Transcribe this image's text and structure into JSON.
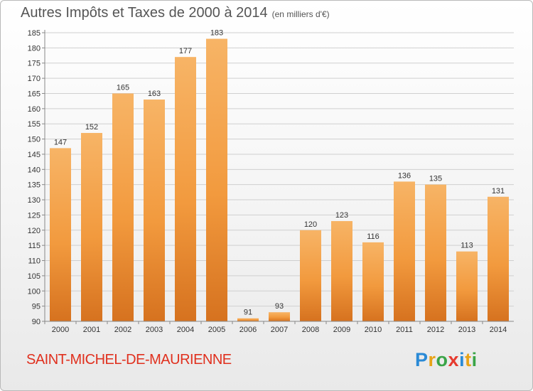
{
  "title": "Autres Impôts et Taxes de 2000 à 2014",
  "unit": "(en milliers d'€)",
  "town": "SAINT-MICHEL-DE-MAURIENNE",
  "logo": {
    "letters": [
      "P",
      "r",
      "o",
      "x",
      "i",
      "t",
      "i"
    ],
    "colors": [
      "#2a8ad6",
      "#e8a317",
      "#3aa447",
      "#e63a2e",
      "#2a8ad6",
      "#e8a317",
      "#3aa447"
    ]
  },
  "colors": {
    "bar": "#f29a3e",
    "bar_light": "#f7b466",
    "bar_dark": "#d6721f",
    "grid": "#cfcfcf"
  },
  "chart_data": {
    "type": "bar",
    "title": "Autres Impôts et Taxes de 2000 à 2014",
    "subtitle": "(en milliers d'€)",
    "categories": [
      "2000",
      "2001",
      "2002",
      "2003",
      "2004",
      "2005",
      "2006",
      "2007",
      "2008",
      "2009",
      "2010",
      "2011",
      "2012",
      "2013",
      "2014"
    ],
    "values": [
      147,
      152,
      165,
      163,
      177,
      183,
      91,
      93,
      120,
      123,
      116,
      136,
      135,
      113,
      131
    ],
    "ylim": [
      90,
      185
    ],
    "yticks": [
      90,
      95,
      100,
      105,
      110,
      115,
      120,
      125,
      130,
      135,
      140,
      145,
      150,
      155,
      160,
      165,
      170,
      175,
      180,
      185
    ],
    "grid": true,
    "data_labels": true
  }
}
